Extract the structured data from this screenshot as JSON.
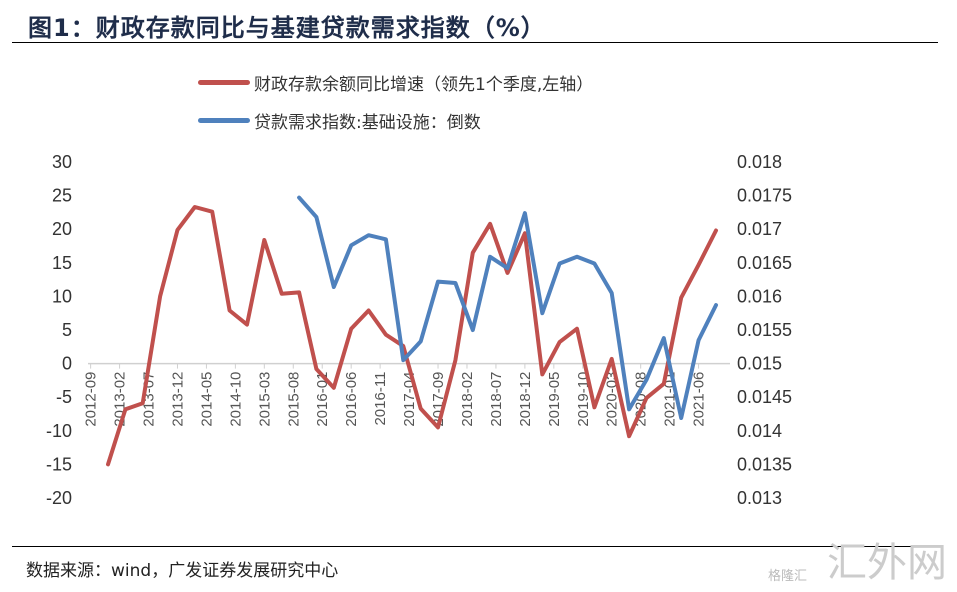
{
  "title": "图1：财政存款同比与基建贷款需求指数（%）",
  "source": "数据来源：wind，广发证券发展研究中心",
  "watermark": "汇外网",
  "watermark_sub": "格隆汇",
  "chart_data": {
    "type": "line",
    "x_start": "2012-12",
    "x_step": "quarter",
    "x": [
      "2012-12",
      "2013-03",
      "2013-06",
      "2013-09",
      "2013-12",
      "2014-03",
      "2014-06",
      "2014-09",
      "2014-12",
      "2015-03",
      "2015-06",
      "2015-09",
      "2015-12",
      "2016-03",
      "2016-06",
      "2016-09",
      "2016-12",
      "2017-03",
      "2017-06",
      "2017-09",
      "2017-12",
      "2018-03",
      "2018-06",
      "2018-09",
      "2018-12",
      "2019-03",
      "2019-06",
      "2019-09",
      "2019-12",
      "2020-03",
      "2020-06",
      "2020-09",
      "2020-12",
      "2021-03",
      "2021-06",
      "2021-09"
    ],
    "x_tick_labels": [
      "2012-09",
      "2013-02",
      "2013-07",
      "2013-12",
      "2014-05",
      "2014-10",
      "2015-03",
      "2015-08",
      "2016-01",
      "2016-06",
      "2016-11",
      "2017-04",
      "2017-09",
      "2018-02",
      "2018-07",
      "2018-12",
      "2019-05",
      "2019-10",
      "2020-03",
      "2020-08",
      "2021-01",
      "2021-06"
    ],
    "y_left": {
      "min": -20,
      "max": 30,
      "ticks": [
        "30",
        "25",
        "20",
        "15",
        "10",
        "5",
        "0",
        "-5",
        "-10",
        "-15",
        "-20"
      ]
    },
    "y_right": {
      "min": 0.013,
      "max": 0.018,
      "ticks": [
        "0.018",
        "0.0175",
        "0.017",
        "0.0165",
        "0.016",
        "0.0155",
        "0.015",
        "0.0145",
        "0.014",
        "0.0135",
        "0.013"
      ]
    },
    "legend_position": "top",
    "grid": false,
    "series": [
      {
        "name": "财政存款余额同比增速（领先1个季度,左轴）",
        "axis": "left",
        "color": "#C0504D",
        "values": [
          -15.0,
          -6.8,
          -5.9,
          10.0,
          19.9,
          23.3,
          22.6,
          7.9,
          5.8,
          18.4,
          10.4,
          10.6,
          -0.8,
          -3.6,
          5.2,
          7.9,
          4.3,
          2.6,
          -6.7,
          -9.5,
          0.5,
          16.5,
          20.8,
          13.5,
          19.4,
          -1.6,
          3.2,
          5.2,
          -6.5,
          0.7,
          -10.8,
          -5.1,
          -3.0,
          9.8,
          14.7,
          19.8
        ]
      },
      {
        "name": "贷款需求指数:基础设施：倒数",
        "axis": "right",
        "color": "#4F81BD",
        "values": [
          null,
          null,
          null,
          null,
          null,
          null,
          null,
          null,
          null,
          null,
          null,
          0.01747,
          0.01718,
          0.01614,
          0.01676,
          0.01691,
          0.01685,
          0.01505,
          0.01533,
          0.01622,
          0.0162,
          0.0155,
          0.01659,
          0.01642,
          0.01724,
          0.01575,
          0.01649,
          0.01659,
          0.01649,
          0.01605,
          0.01432,
          0.01476,
          0.01538,
          0.01419,
          0.01535,
          0.01587
        ]
      }
    ]
  }
}
